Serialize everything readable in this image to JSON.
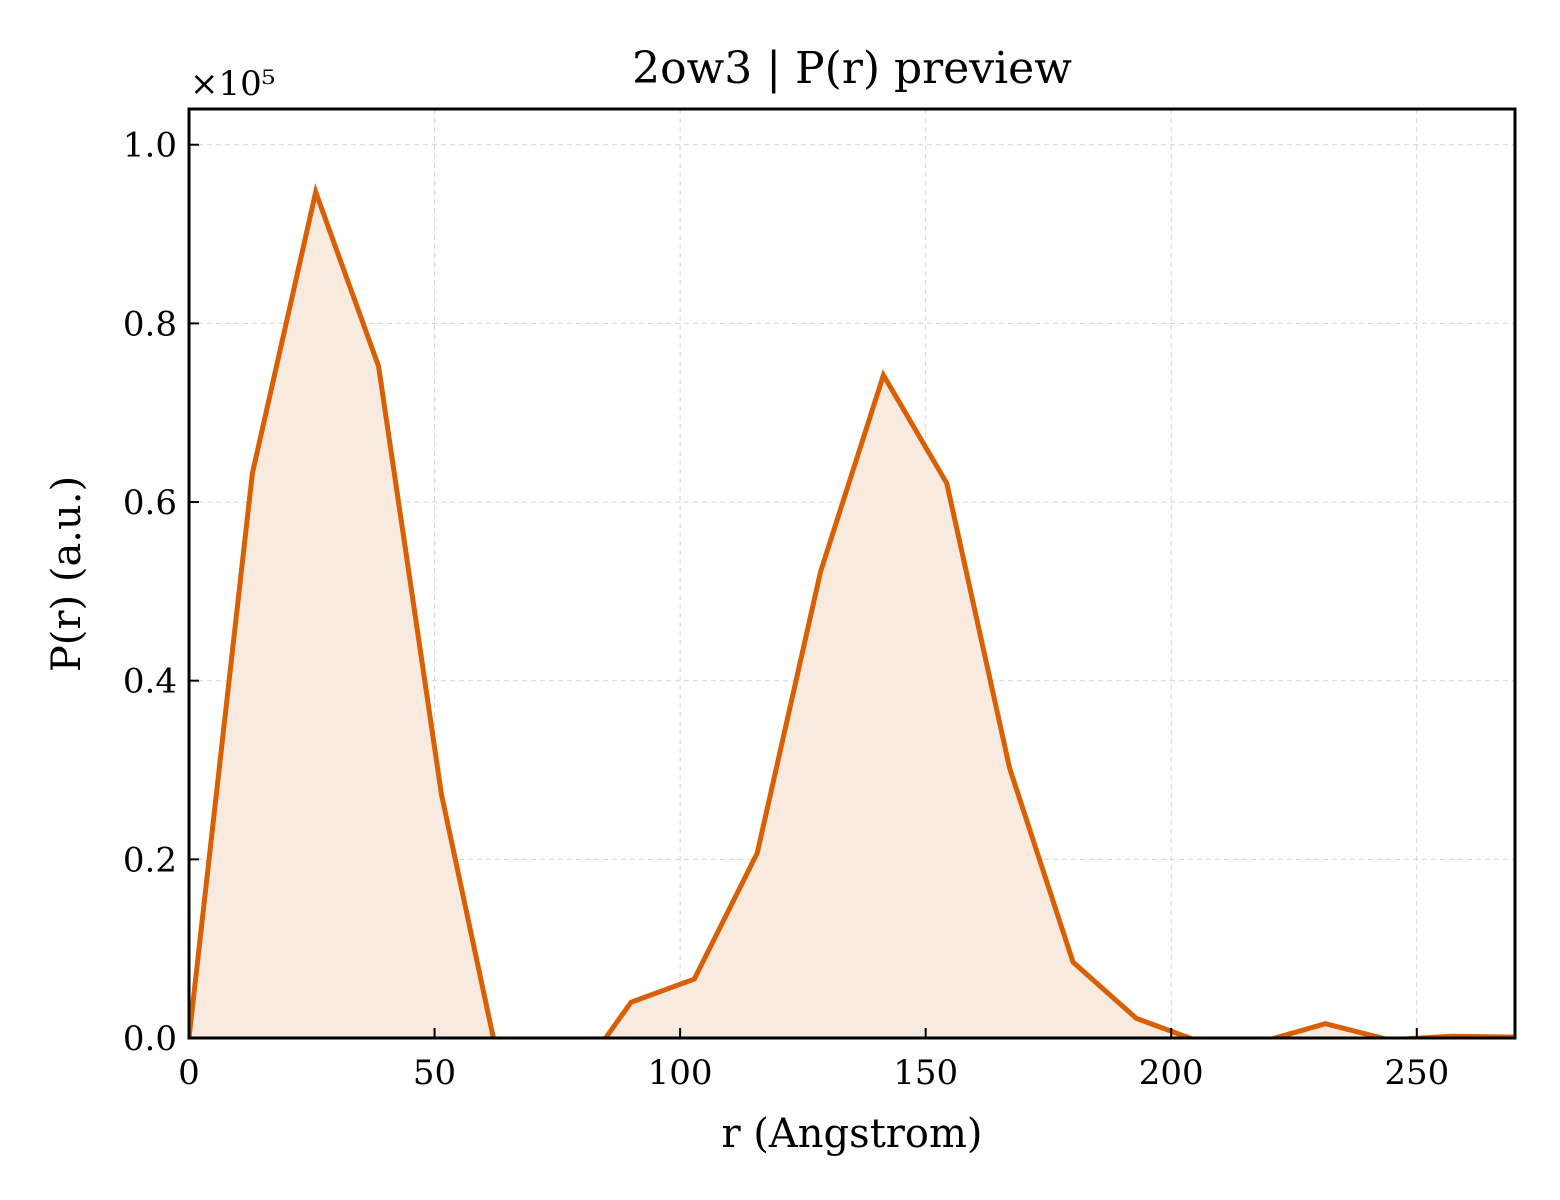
{
  "chart_data": {
    "type": "area",
    "title": "2ow3 | P(r) preview",
    "xlabel": "r (Angstrom)",
    "ylabel": "P(r) (a.u.)",
    "y_offset_label": "×10⁵",
    "xlim": [
      0,
      270
    ],
    "ylim": [
      0,
      1.04
    ],
    "x_ticks": [
      0,
      50,
      100,
      150,
      200,
      250
    ],
    "y_ticks": [
      0.0,
      0.2,
      0.4,
      0.6,
      0.8,
      1.0
    ],
    "y_tick_labels": [
      "0.0",
      "0.2",
      "0.4",
      "0.6",
      "0.8",
      "1.0"
    ],
    "grid": true,
    "line_color": "#d95f02",
    "fill_color": "#f9eadf",
    "series": [
      {
        "x": [
          0,
          12.9,
          25.8,
          38.6,
          51.4,
          64.3,
          77.1,
          90.0,
          102.9,
          115.7,
          128.6,
          141.4,
          154.3,
          167.1,
          180.0,
          192.9,
          205.7,
          218.6,
          231.4,
          244.3,
          257.1,
          270.0
        ],
        "y": [
          0.0,
          0.632,
          0.947,
          0.752,
          0.273,
          -0.06,
          -0.06,
          0.04,
          0.066,
          0.207,
          0.522,
          0.742,
          0.621,
          0.302,
          0.085,
          0.022,
          -0.004,
          -0.004,
          0.016,
          -0.002,
          0.002,
          0.001
        ]
      }
    ]
  }
}
